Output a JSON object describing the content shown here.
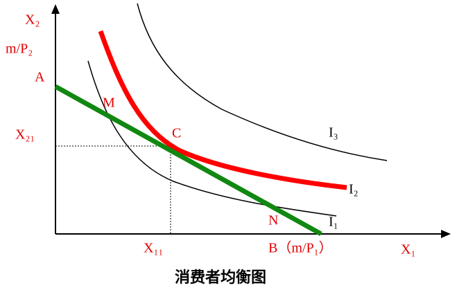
{
  "diagram": {
    "title": "消费者均衡图",
    "labels": {
      "y_axis": "X₂",
      "y_intercept_value": "m/P₂",
      "point_a": "A",
      "point_m": "M",
      "y_equilibrium": "X₂₁",
      "point_c": "C",
      "curve_i3": "I₃",
      "curve_i2": "I₂",
      "point_n": "N",
      "curve_i1": "I₁",
      "x_equilibrium": "X₁₁",
      "point_b": "B（m/P₁）",
      "x_axis": "X₁"
    }
  }
}
